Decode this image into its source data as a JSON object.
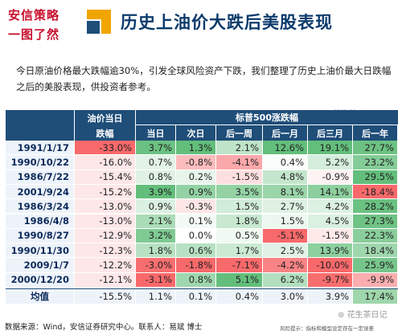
{
  "logo": {
    "line1": "安信策略",
    "line2": "一图了然"
  },
  "title": "历史上油价大跌后美股表现",
  "intro": "今日原油价格最大跌幅逾30%，引发全球风险资产下跌，我们整理了历史上油价最大日跌幅之后的美股表现，供投资者参考。",
  "watermark": "花生茶日记",
  "table": {
    "header_top_left": "油价当日",
    "header_bottom_left": "跌幅",
    "group_header": "标普500涨跌幅",
    "sub_headers": [
      "当日",
      "次日",
      "后一周",
      "后一月",
      "后三月",
      "后一年"
    ],
    "rows": [
      {
        "date": "1991/1/17",
        "oil": "-33.0%",
        "vals": [
          "3.7%",
          "1.3%",
          "2.1%",
          "12.6%",
          "19.1%",
          "27.7%"
        ]
      },
      {
        "date": "1990/10/22",
        "oil": "-16.0%",
        "vals": [
          "0.7%",
          "-0.8%",
          "-4.1%",
          "0.4%",
          "5.2%",
          "23.2%"
        ]
      },
      {
        "date": "1986/7/22",
        "oil": "-15.4%",
        "vals": [
          "0.8%",
          "0.2%",
          "-1.5%",
          "4.8%",
          "-0.9%",
          "29.5%"
        ]
      },
      {
        "date": "2001/9/24",
        "oil": "-15.2%",
        "vals": [
          "3.9%",
          "0.9%",
          "3.5%",
          "8.1%",
          "14.1%",
          "-18.4%"
        ]
      },
      {
        "date": "1986/3/24",
        "oil": "-13.0%",
        "vals": [
          "0.9%",
          "-0.3%",
          "1.5%",
          "2.7%",
          "4.2%",
          "28.2%"
        ]
      },
      {
        "date": "1986/4/8",
        "oil": "-13.0%",
        "vals": [
          "2.1%",
          "0.1%",
          "1.8%",
          "1.5%",
          "4.5%",
          "27.3%"
        ]
      },
      {
        "date": "1990/8/27",
        "oil": "-12.9%",
        "vals": [
          "3.2%",
          "0.0%",
          "0.5%",
          "-5.1%",
          "-1.5%",
          "22.3%"
        ]
      },
      {
        "date": "1990/11/30",
        "oil": "-12.3%",
        "vals": [
          "1.8%",
          "0.6%",
          "1.7%",
          "2.5%",
          "13.9%",
          "18.4%"
        ]
      },
      {
        "date": "2009/1/7",
        "oil": "-12.2%",
        "vals": [
          "-3.0%",
          "-1.8%",
          "-7.1%",
          "-4.2%",
          "-10.0%",
          "25.9%"
        ]
      },
      {
        "date": "2000/12/20",
        "oil": "-12.1%",
        "vals": [
          "-3.1%",
          "0.8%",
          "5.1%",
          "6.2%",
          "-9.7%",
          "-9.9%"
        ]
      }
    ],
    "avg_label": "均值",
    "avg": {
      "oil": "-15.5%",
      "vals": [
        "1.1%",
        "0.1%",
        "0.4%",
        "3.0%",
        "3.9%",
        "17.4%"
      ]
    }
  },
  "footer": {
    "source": "数据来源：Wind，安信证券研究中心。联系人：易斌 博士",
    "note": "风险提示：指标和模型设定存在一定误差"
  },
  "colors": {
    "header_bg": "#1f4e79",
    "title": "#0b3a6b",
    "logo_red": "#c8102e",
    "pos_strong": "#63be7b",
    "neg_strong": "#f8696b"
  }
}
